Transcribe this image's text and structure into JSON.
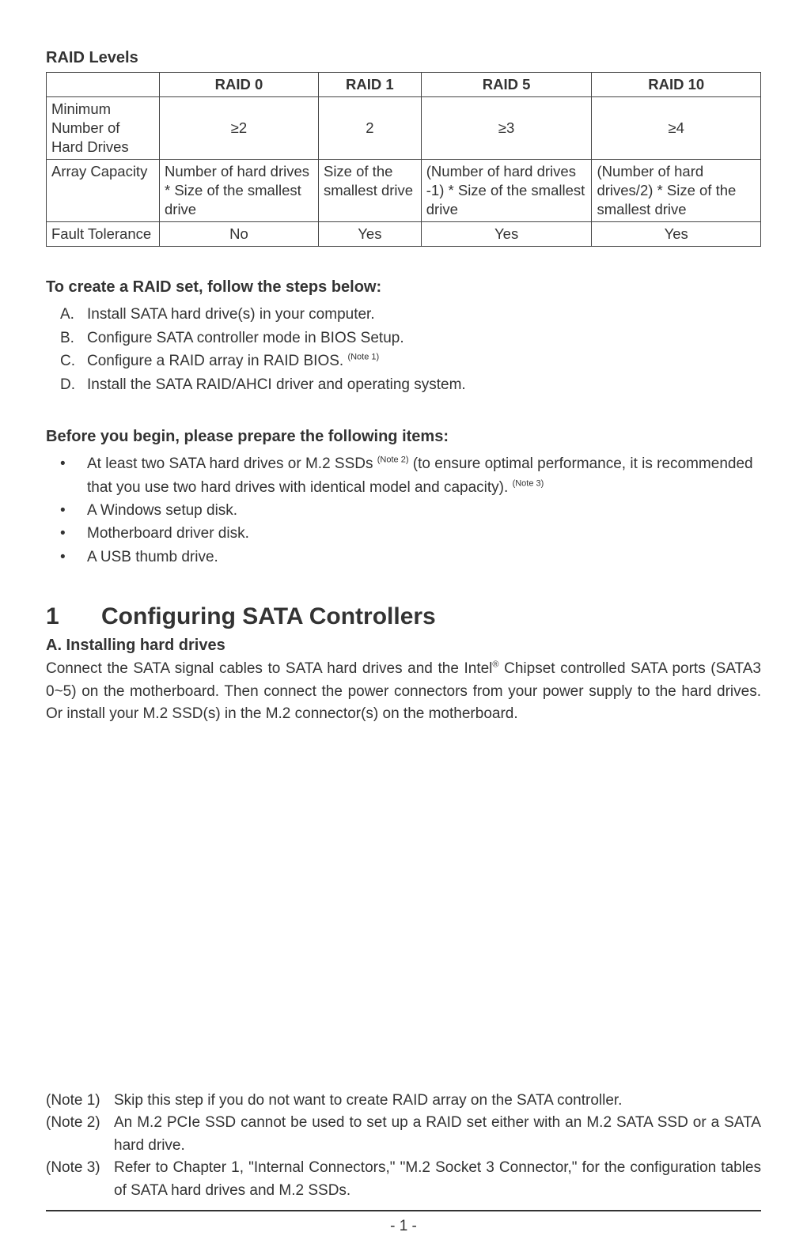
{
  "colors": {
    "text": "#333333",
    "border": "#444444",
    "background": "#ffffff"
  },
  "fonts": {
    "body_size_pt": 14,
    "heading_size_pt": 15,
    "h1_size_pt": 22,
    "sup_size_pt": 8
  },
  "raid_table": {
    "title": "RAID Levels",
    "columns": [
      "",
      "RAID 0",
      "RAID 1",
      "RAID 5",
      "RAID 10"
    ],
    "rows": [
      {
        "label": "Minimum Number of Hard Drives",
        "cells": [
          "≥2",
          "2",
          "≥3",
          "≥4"
        ],
        "center": true
      },
      {
        "label": "Array Capacity",
        "cells": [
          "Number of hard drives * Size of the smallest drive",
          "Size of the smallest drive",
          "(Number of hard drives -1) * Size of the smallest drive",
          "(Number of hard drives/2) * Size of the smallest drive"
        ],
        "center": false
      },
      {
        "label": "Fault Tolerance",
        "cells": [
          "No",
          "Yes",
          "Yes",
          "Yes"
        ],
        "center": true
      }
    ]
  },
  "steps": {
    "title": "To create a RAID set, follow the steps below:",
    "items": [
      {
        "marker": "A.",
        "text": "Install SATA hard drive(s) in your computer."
      },
      {
        "marker": "B.",
        "text": "Configure SATA controller mode in BIOS Setup."
      },
      {
        "marker": "C.",
        "text_pre": "Configure a RAID array in RAID BIOS. ",
        "note": "(Note 1)",
        "text_post": ""
      },
      {
        "marker": "D.",
        "text": "Install the SATA RAID/AHCI driver and operating system."
      }
    ]
  },
  "before": {
    "title": "Before you begin, please prepare the following items:",
    "items": [
      {
        "text_pre": "At least two SATA hard drives or M.2 SSDs ",
        "note1": "(Note 2)",
        "text_mid": " (to ensure optimal performance, it is recommended that you use two hard drives with identical model and capacity). ",
        "note2": "(Note 3)"
      },
      {
        "text": "A Windows setup disk."
      },
      {
        "text": "Motherboard driver disk."
      },
      {
        "text": "A USB thumb drive."
      }
    ]
  },
  "section1": {
    "num": "1",
    "title": "Configuring SATA Controllers",
    "sub_a_title": "A. Installing hard drives",
    "sub_a_pre": "Connect the SATA signal cables to SATA hard drives and the Intel",
    "reg": "®",
    "sub_a_post": " Chipset controlled SATA ports (SATA3 0~5) on the motherboard. Then connect the power connectors from your power supply to the hard drives. Or install your M.2 SSD(s) in the M.2 connector(s) on the motherboard."
  },
  "notes": [
    {
      "k": "(Note 1)",
      "v": "Skip this step if you do not want to create RAID array on the SATA controller."
    },
    {
      "k": "(Note 2)",
      "v": "An M.2 PCIe SSD cannot be used to set up a RAID set either with an M.2 SATA SSD or a SATA hard drive."
    },
    {
      "k": "(Note 3)",
      "v": "Refer to Chapter 1, \"Internal Connectors,\" \"M.2 Socket 3 Connector,\" for the configuration tables of SATA hard drives and M.2 SSDs."
    }
  ],
  "page_number": "- 1 -"
}
